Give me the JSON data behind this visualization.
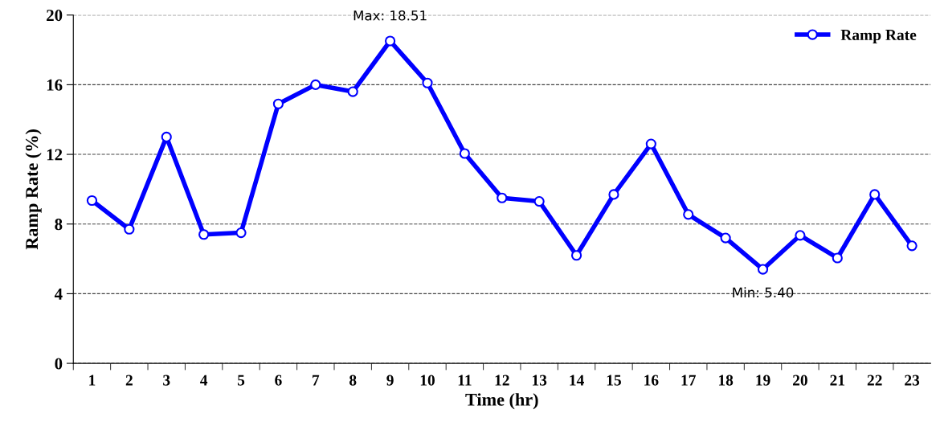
{
  "chart_data": {
    "type": "line",
    "xlabel": "Time (hr)",
    "ylabel": "Ramp Rate (%)",
    "categories": [
      "1",
      "2",
      "3",
      "4",
      "5",
      "6",
      "7",
      "8",
      "9",
      "10",
      "11",
      "12",
      "13",
      "14",
      "15",
      "16",
      "17",
      "18",
      "19",
      "20",
      "21",
      "22",
      "23"
    ],
    "series": [
      {
        "name": "Ramp Rate",
        "color": "#0000ff",
        "values": [
          9.35,
          7.7,
          13.0,
          7.4,
          7.5,
          14.9,
          16.0,
          15.6,
          18.51,
          16.1,
          12.05,
          9.5,
          9.3,
          6.2,
          9.7,
          12.6,
          8.55,
          7.2,
          5.4,
          7.35,
          6.05,
          9.7,
          6.75
        ]
      }
    ],
    "ylim": [
      0,
      20
    ],
    "yticks": [
      0,
      4,
      8,
      12,
      16,
      20
    ],
    "annotations": [
      {
        "text": "Max: 18.51",
        "x": "9",
        "y": 18.51
      },
      {
        "text": "Min: 5.40",
        "x": "19",
        "y": 5.4
      }
    ],
    "grid": "y",
    "legend": "top right",
    "marker": "circle",
    "line_style": "solid"
  }
}
